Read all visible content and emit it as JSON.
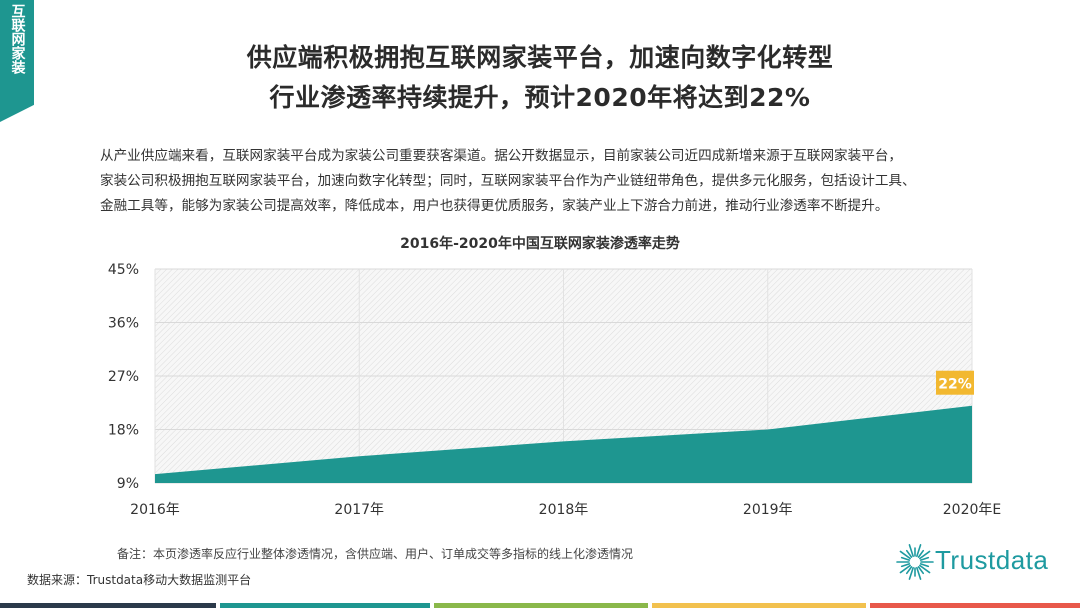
{
  "section_tag": "互联网家装",
  "title_line1": "供应端积极拥抱互联网家装平台，加速向数字化转型",
  "title_line2": "行业渗透率持续提升，预计2020年将达到22%",
  "intro_lines": [
    "从产业供应端来看，互联网家装平台成为家装公司重要获客渠道。据公开数据显示，目前家装公司近四成新增来源于互联网家装平台，",
    "家装公司积极拥抱互联网家装平台，加速向数字化转型；同时，互联网家装平台作为产业链纽带角色，提供多元化服务，包括设计工具、",
    "金融工具等，能够为家装公司提高效率，降低成本，用户也获得更优质服务，家装产业上下游合力前进，推动行业渗透率不断提升。"
  ],
  "note": "备注：本页渗透率反应行业整体渗透情况，含供应端、用户、订单成交等多指标的线上化渗透情况",
  "source": "数据来源：Trustdata移动大数据监测平台",
  "logo_text": "Trustdata",
  "colors": {
    "teal": "#1e9690",
    "label_bg": "#f2b830",
    "bar1": "#2b3a4a",
    "bar2": "#1e9690",
    "bar3": "#8ab84a",
    "bar4": "#f2c14e",
    "bar5": "#e8584a"
  },
  "chart_data": {
    "type": "area",
    "title": "2016年-2020年中国互联网家装渗透率走势",
    "categories": [
      "2016年",
      "2017年",
      "2018年",
      "2019年",
      "2020年E"
    ],
    "values": [
      10.5,
      13.5,
      16.0,
      18.0,
      22.0
    ],
    "ylim": [
      9,
      45
    ],
    "yticks": [
      9,
      18,
      27,
      36,
      45
    ],
    "ytick_labels": [
      "9%",
      "18%",
      "27%",
      "36%",
      "45%"
    ],
    "data_labels": [
      {
        "index": 4,
        "text": "22%"
      }
    ],
    "grid": true
  }
}
